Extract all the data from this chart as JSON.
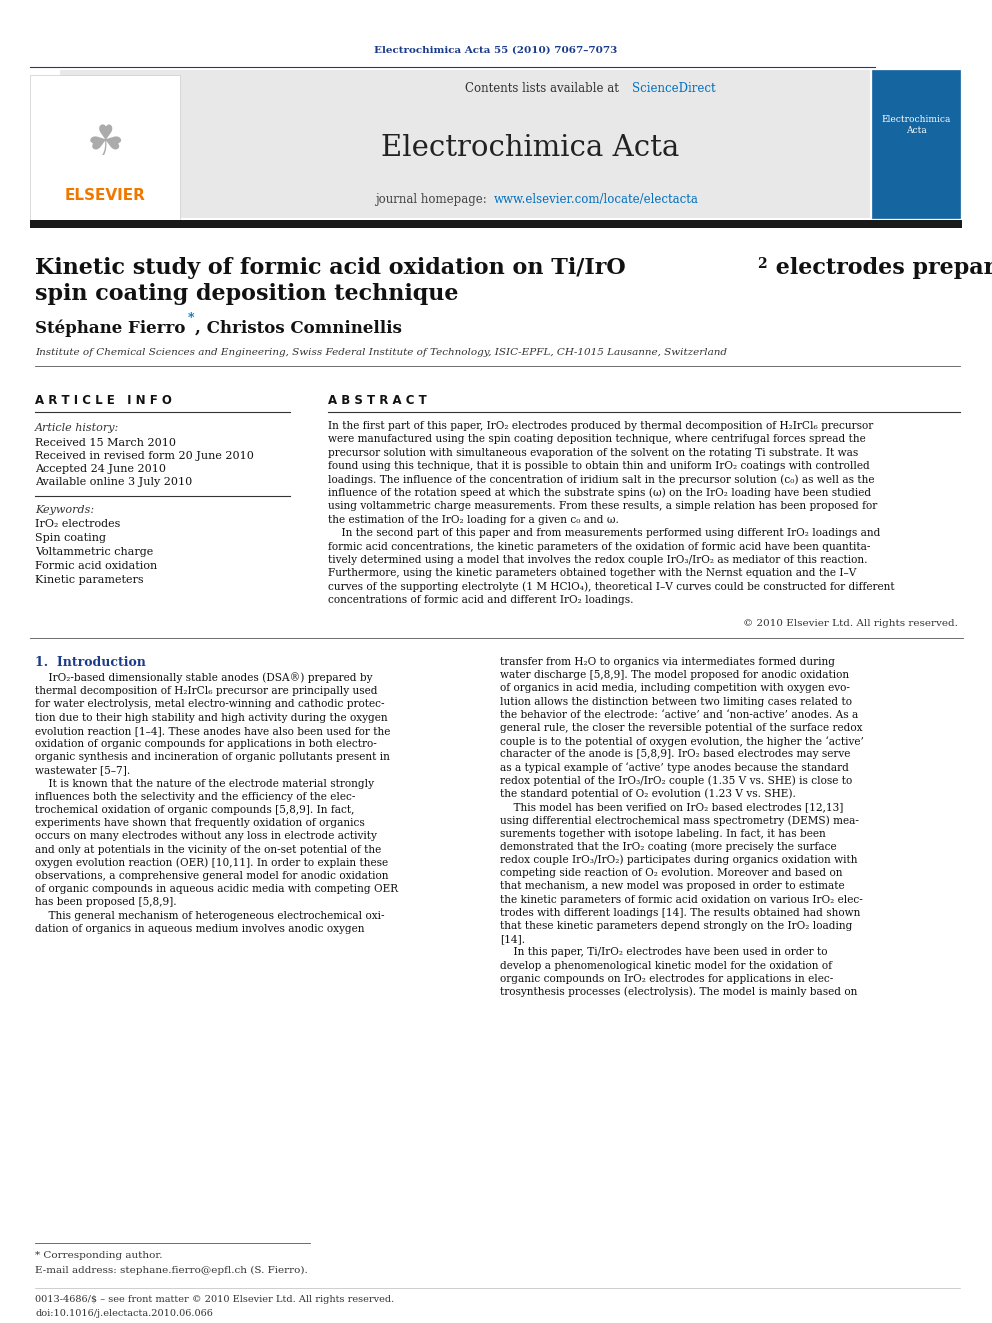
{
  "page_width": 9.92,
  "page_height": 13.23,
  "bg_color": "#ffffff",
  "header_journal": "Electrochimica Acta 55 (2010) 7067–7073",
  "header_color": "#1a3a8a",
  "journal_banner_bg": "#e8e8e8",
  "journal_title": "Electrochimica Acta",
  "contents_text": "Contents lists available at ScienceDirect",
  "homepage_text": "journal homepage: www.elsevier.com/locate/electacta",
  "elsevier_color": "#f07800",
  "sciencedirect_color": "#0070c0",
  "homepage_link_color": "#0070c0",
  "paper_title_line1": "Kinetic study of formic acid oxidation on Ti/IrO",
  "paper_title_sub": "2",
  "paper_title_line1b": " electrodes prepared using the",
  "paper_title_line2": "spin coating deposition technique",
  "authors_part1": "Stéphane Fierro",
  "authors_part2": ", Christos Comninellis",
  "affiliation": "Institute of Chemical Sciences and Engineering, Swiss Federal Institute of Technology, ISIC-EPFL, CH-1015 Lausanne, Switzerland",
  "article_info_title": "A R T I C L E   I N F O",
  "article_history_title": "Article history:",
  "received": "Received 15 March 2010",
  "revised": "Received in revised form 20 June 2010",
  "accepted": "Accepted 24 June 2010",
  "available": "Available online 3 July 2010",
  "keywords_title": "Keywords:",
  "keywords": [
    "IrO₂ electrodes",
    "Spin coating",
    "Voltammetric charge",
    "Formic acid oxidation",
    "Kinetic parameters"
  ],
  "abstract_title": "A B S T R A C T",
  "copyright": "© 2010 Elsevier Ltd. All rights reserved.",
  "section1_title": "1.  Introduction",
  "footnote_star": "* Corresponding author.",
  "footnote_email": "E-mail address: stephane.fierro@epfl.ch (S. Fierro).",
  "footnote_issn": "0013-4686/$ – see front matter © 2010 Elsevier Ltd. All rights reserved.",
  "footnote_doi": "doi:10.1016/j.electacta.2010.06.066",
  "separator_color": "#1a3a8a",
  "dark_separator": "#1a1a1a",
  "abstract_lines": [
    "In the first part of this paper, IrO₂ electrodes produced by thermal decomposition of H₂IrCl₆ precursor",
    "were manufactured using the spin coating deposition technique, where centrifugal forces spread the",
    "precursor solution with simultaneous evaporation of the solvent on the rotating Ti substrate. It was",
    "found using this technique, that it is possible to obtain thin and uniform IrO₂ coatings with controlled",
    "loadings. The influence of the concentration of iridium salt in the precursor solution (c₀) as well as the",
    "influence of the rotation speed at which the substrate spins (ω) on the IrO₂ loading have been studied",
    "using voltammetric charge measurements. From these results, a simple relation has been proposed for",
    "the estimation of the IrO₂ loading for a given c₀ and ω.",
    "    In the second part of this paper and from measurements performed using different IrO₂ loadings and",
    "formic acid concentrations, the kinetic parameters of the oxidation of formic acid have been quantita-",
    "tively determined using a model that involves the redox couple IrO₃/IrO₂ as mediator of this reaction.",
    "Furthermore, using the kinetic parameters obtained together with the Nernst equation and the I–V",
    "curves of the supporting electrolyte (1 M HClO₄), theoretical I–V curves could be constructed for different",
    "concentrations of formic acid and different IrO₂ loadings."
  ],
  "intro_left": [
    "    IrO₂-based dimensionally stable anodes (DSA®) prepared by",
    "thermal decomposition of H₂IrCl₆ precursor are principally used",
    "for water electrolysis, metal electro-winning and cathodic protec-",
    "tion due to their high stability and high activity during the oxygen",
    "evolution reaction [1–4]. These anodes have also been used for the",
    "oxidation of organic compounds for applications in both electro-",
    "organic synthesis and incineration of organic pollutants present in",
    "wastewater [5–7].",
    "    It is known that the nature of the electrode material strongly",
    "influences both the selectivity and the efficiency of the elec-",
    "trochemical oxidation of organic compounds [5,8,9]. In fact,",
    "experiments have shown that frequently oxidation of organics",
    "occurs on many electrodes without any loss in electrode activity",
    "and only at potentials in the vicinity of the on-set potential of the",
    "oxygen evolution reaction (OER) [10,11]. In order to explain these",
    "observations, a comprehensive general model for anodic oxidation",
    "of organic compounds in aqueous acidic media with competing OER",
    "has been proposed [5,8,9].",
    "    This general mechanism of heterogeneous electrochemical oxi-",
    "dation of organics in aqueous medium involves anodic oxygen"
  ],
  "intro_right": [
    "transfer from H₂O to organics via intermediates formed during",
    "water discharge [5,8,9]. The model proposed for anodic oxidation",
    "of organics in acid media, including competition with oxygen evo-",
    "lution allows the distinction between two limiting cases related to",
    "the behavior of the electrode: ‘active’ and ‘non-active’ anodes. As a",
    "general rule, the closer the reversible potential of the surface redox",
    "couple is to the potential of oxygen evolution, the higher the ‘active’",
    "character of the anode is [5,8,9]. IrO₂ based electrodes may serve",
    "as a typical example of ‘active’ type anodes because the standard",
    "redox potential of the IrO₃/IrO₂ couple (1.35 V vs. SHE) is close to",
    "the standard potential of O₂ evolution (1.23 V vs. SHE).",
    "    This model has been verified on IrO₂ based electrodes [12,13]",
    "using differential electrochemical mass spectrometry (DEMS) mea-",
    "surements together with isotope labeling. In fact, it has been",
    "demonstrated that the IrO₂ coating (more precisely the surface",
    "redox couple IrO₃/IrO₂) participates during organics oxidation with",
    "competing side reaction of O₂ evolution. Moreover and based on",
    "that mechanism, a new model was proposed in order to estimate",
    "the kinetic parameters of formic acid oxidation on various IrO₂ elec-",
    "trodes with different loadings [14]. The results obtained had shown",
    "that these kinetic parameters depend strongly on the IrO₂ loading",
    "[14].",
    "    In this paper, Ti/IrO₂ electrodes have been used in order to",
    "develop a phenomenological kinetic model for the oxidation of",
    "organic compounds on IrO₂ electrodes for applications in elec-",
    "trosynthesis processes (electrolysis). The model is mainly based on"
  ]
}
